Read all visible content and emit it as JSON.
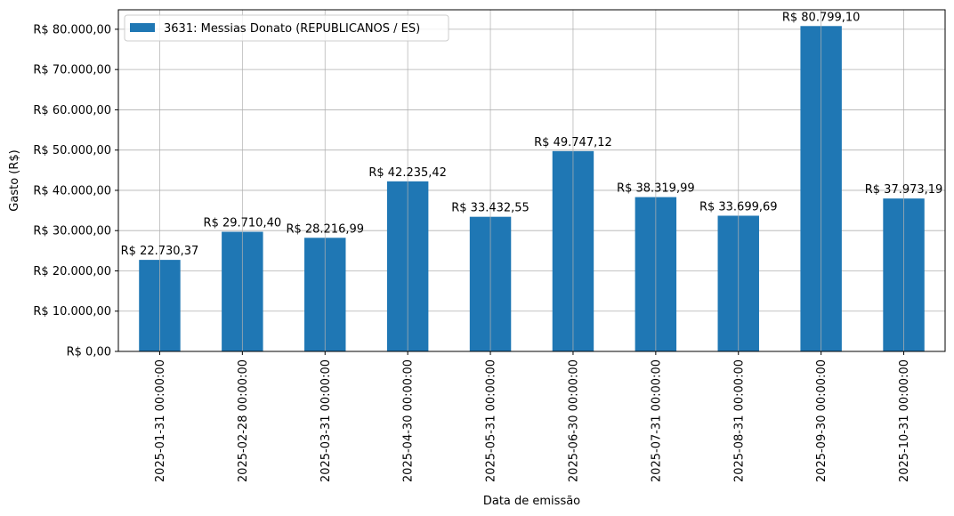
{
  "chart_data": {
    "type": "bar",
    "categories": [
      "2025-01-31 00:00:00",
      "2025-02-28 00:00:00",
      "2025-03-31 00:00:00",
      "2025-04-30 00:00:00",
      "2025-05-31 00:00:00",
      "2025-06-30 00:00:00",
      "2025-07-31 00:00:00",
      "2025-08-31 00:00:00",
      "2025-09-30 00:00:00",
      "2025-10-31 00:00:00"
    ],
    "series": [
      {
        "name": "3631: Messias Donato (REPUBLICANOS / ES)",
        "color": "#1f77b4",
        "values": [
          22730.37,
          29710.4,
          28216.99,
          42235.42,
          33432.55,
          49747.12,
          38319.99,
          33699.69,
          80799.1,
          37973.19
        ]
      }
    ],
    "data_labels": [
      "R$ 22.730,37",
      "R$ 29.710,40",
      "R$ 28.216,99",
      "R$ 42.235,42",
      "R$ 33.432,55",
      "R$ 49.747,12",
      "R$ 38.319,99",
      "R$ 33.699,69",
      "R$ 80.799,10",
      "R$ 37.973,19"
    ],
    "xlabel": "Data de emissão",
    "ylabel": "Gasto (R$)",
    "ylim": [
      0,
      84838.06
    ],
    "yticks": [
      0,
      10000,
      20000,
      30000,
      40000,
      50000,
      60000,
      70000,
      80000
    ],
    "ytick_labels": [
      "R$ 0,00",
      "R$ 10.000,00",
      "R$ 20.000,00",
      "R$ 30.000,00",
      "R$ 40.000,00",
      "R$ 50.000,00",
      "R$ 60.000,00",
      "R$ 70.000,00",
      "R$ 80.000,00"
    ],
    "grid": true,
    "legend_position": "top-left"
  }
}
